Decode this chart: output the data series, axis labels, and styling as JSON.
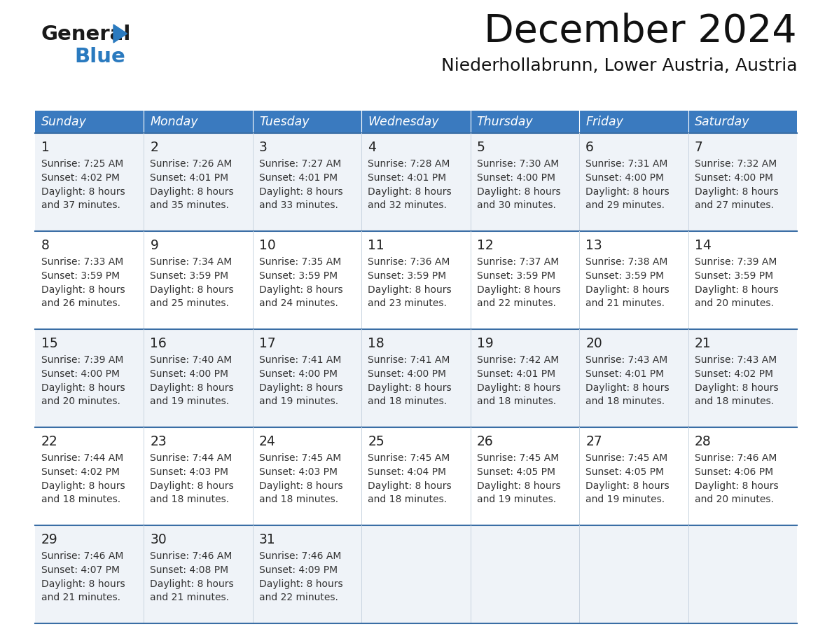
{
  "title": "December 2024",
  "subtitle": "Niederhollabrunn, Lower Austria, Austria",
  "days_of_week": [
    "Sunday",
    "Monday",
    "Tuesday",
    "Wednesday",
    "Thursday",
    "Friday",
    "Saturday"
  ],
  "header_bg": "#3a7abf",
  "header_text": "#ffffff",
  "row_bg_even": "#eff3f8",
  "row_bg_odd": "#ffffff",
  "cell_border_color": "#3a6ea5",
  "cell_sep_color": "#c8d4e0",
  "day_num_color": "#222222",
  "cell_text_color": "#333333",
  "calendar_data": [
    [
      {
        "day": 1,
        "sunrise": "7:25 AM",
        "sunset": "4:02 PM",
        "daylight": "8 hours and 37 minutes."
      },
      {
        "day": 2,
        "sunrise": "7:26 AM",
        "sunset": "4:01 PM",
        "daylight": "8 hours and 35 minutes."
      },
      {
        "day": 3,
        "sunrise": "7:27 AM",
        "sunset": "4:01 PM",
        "daylight": "8 hours and 33 minutes."
      },
      {
        "day": 4,
        "sunrise": "7:28 AM",
        "sunset": "4:01 PM",
        "daylight": "8 hours and 32 minutes."
      },
      {
        "day": 5,
        "sunrise": "7:30 AM",
        "sunset": "4:00 PM",
        "daylight": "8 hours and 30 minutes."
      },
      {
        "day": 6,
        "sunrise": "7:31 AM",
        "sunset": "4:00 PM",
        "daylight": "8 hours and 29 minutes."
      },
      {
        "day": 7,
        "sunrise": "7:32 AM",
        "sunset": "4:00 PM",
        "daylight": "8 hours and 27 minutes."
      }
    ],
    [
      {
        "day": 8,
        "sunrise": "7:33 AM",
        "sunset": "3:59 PM",
        "daylight": "8 hours and 26 minutes."
      },
      {
        "day": 9,
        "sunrise": "7:34 AM",
        "sunset": "3:59 PM",
        "daylight": "8 hours and 25 minutes."
      },
      {
        "day": 10,
        "sunrise": "7:35 AM",
        "sunset": "3:59 PM",
        "daylight": "8 hours and 24 minutes."
      },
      {
        "day": 11,
        "sunrise": "7:36 AM",
        "sunset": "3:59 PM",
        "daylight": "8 hours and 23 minutes."
      },
      {
        "day": 12,
        "sunrise": "7:37 AM",
        "sunset": "3:59 PM",
        "daylight": "8 hours and 22 minutes."
      },
      {
        "day": 13,
        "sunrise": "7:38 AM",
        "sunset": "3:59 PM",
        "daylight": "8 hours and 21 minutes."
      },
      {
        "day": 14,
        "sunrise": "7:39 AM",
        "sunset": "3:59 PM",
        "daylight": "8 hours and 20 minutes."
      }
    ],
    [
      {
        "day": 15,
        "sunrise": "7:39 AM",
        "sunset": "4:00 PM",
        "daylight": "8 hours and 20 minutes."
      },
      {
        "day": 16,
        "sunrise": "7:40 AM",
        "sunset": "4:00 PM",
        "daylight": "8 hours and 19 minutes."
      },
      {
        "day": 17,
        "sunrise": "7:41 AM",
        "sunset": "4:00 PM",
        "daylight": "8 hours and 19 minutes."
      },
      {
        "day": 18,
        "sunrise": "7:41 AM",
        "sunset": "4:00 PM",
        "daylight": "8 hours and 18 minutes."
      },
      {
        "day": 19,
        "sunrise": "7:42 AM",
        "sunset": "4:01 PM",
        "daylight": "8 hours and 18 minutes."
      },
      {
        "day": 20,
        "sunrise": "7:43 AM",
        "sunset": "4:01 PM",
        "daylight": "8 hours and 18 minutes."
      },
      {
        "day": 21,
        "sunrise": "7:43 AM",
        "sunset": "4:02 PM",
        "daylight": "8 hours and 18 minutes."
      }
    ],
    [
      {
        "day": 22,
        "sunrise": "7:44 AM",
        "sunset": "4:02 PM",
        "daylight": "8 hours and 18 minutes."
      },
      {
        "day": 23,
        "sunrise": "7:44 AM",
        "sunset": "4:03 PM",
        "daylight": "8 hours and 18 minutes."
      },
      {
        "day": 24,
        "sunrise": "7:45 AM",
        "sunset": "4:03 PM",
        "daylight": "8 hours and 18 minutes."
      },
      {
        "day": 25,
        "sunrise": "7:45 AM",
        "sunset": "4:04 PM",
        "daylight": "8 hours and 18 minutes."
      },
      {
        "day": 26,
        "sunrise": "7:45 AM",
        "sunset": "4:05 PM",
        "daylight": "8 hours and 19 minutes."
      },
      {
        "day": 27,
        "sunrise": "7:45 AM",
        "sunset": "4:05 PM",
        "daylight": "8 hours and 19 minutes."
      },
      {
        "day": 28,
        "sunrise": "7:46 AM",
        "sunset": "4:06 PM",
        "daylight": "8 hours and 20 minutes."
      }
    ],
    [
      {
        "day": 29,
        "sunrise": "7:46 AM",
        "sunset": "4:07 PM",
        "daylight": "8 hours and 21 minutes."
      },
      {
        "day": 30,
        "sunrise": "7:46 AM",
        "sunset": "4:08 PM",
        "daylight": "8 hours and 21 minutes."
      },
      {
        "day": 31,
        "sunrise": "7:46 AM",
        "sunset": "4:09 PM",
        "daylight": "8 hours and 22 minutes."
      },
      null,
      null,
      null,
      null
    ]
  ],
  "logo_general_color": "#1a1a1a",
  "logo_blue_color": "#2a7abf",
  "logo_triangle_color": "#2a7abf",
  "fig_width": 11.88,
  "fig_height": 9.18,
  "fig_dpi": 100
}
